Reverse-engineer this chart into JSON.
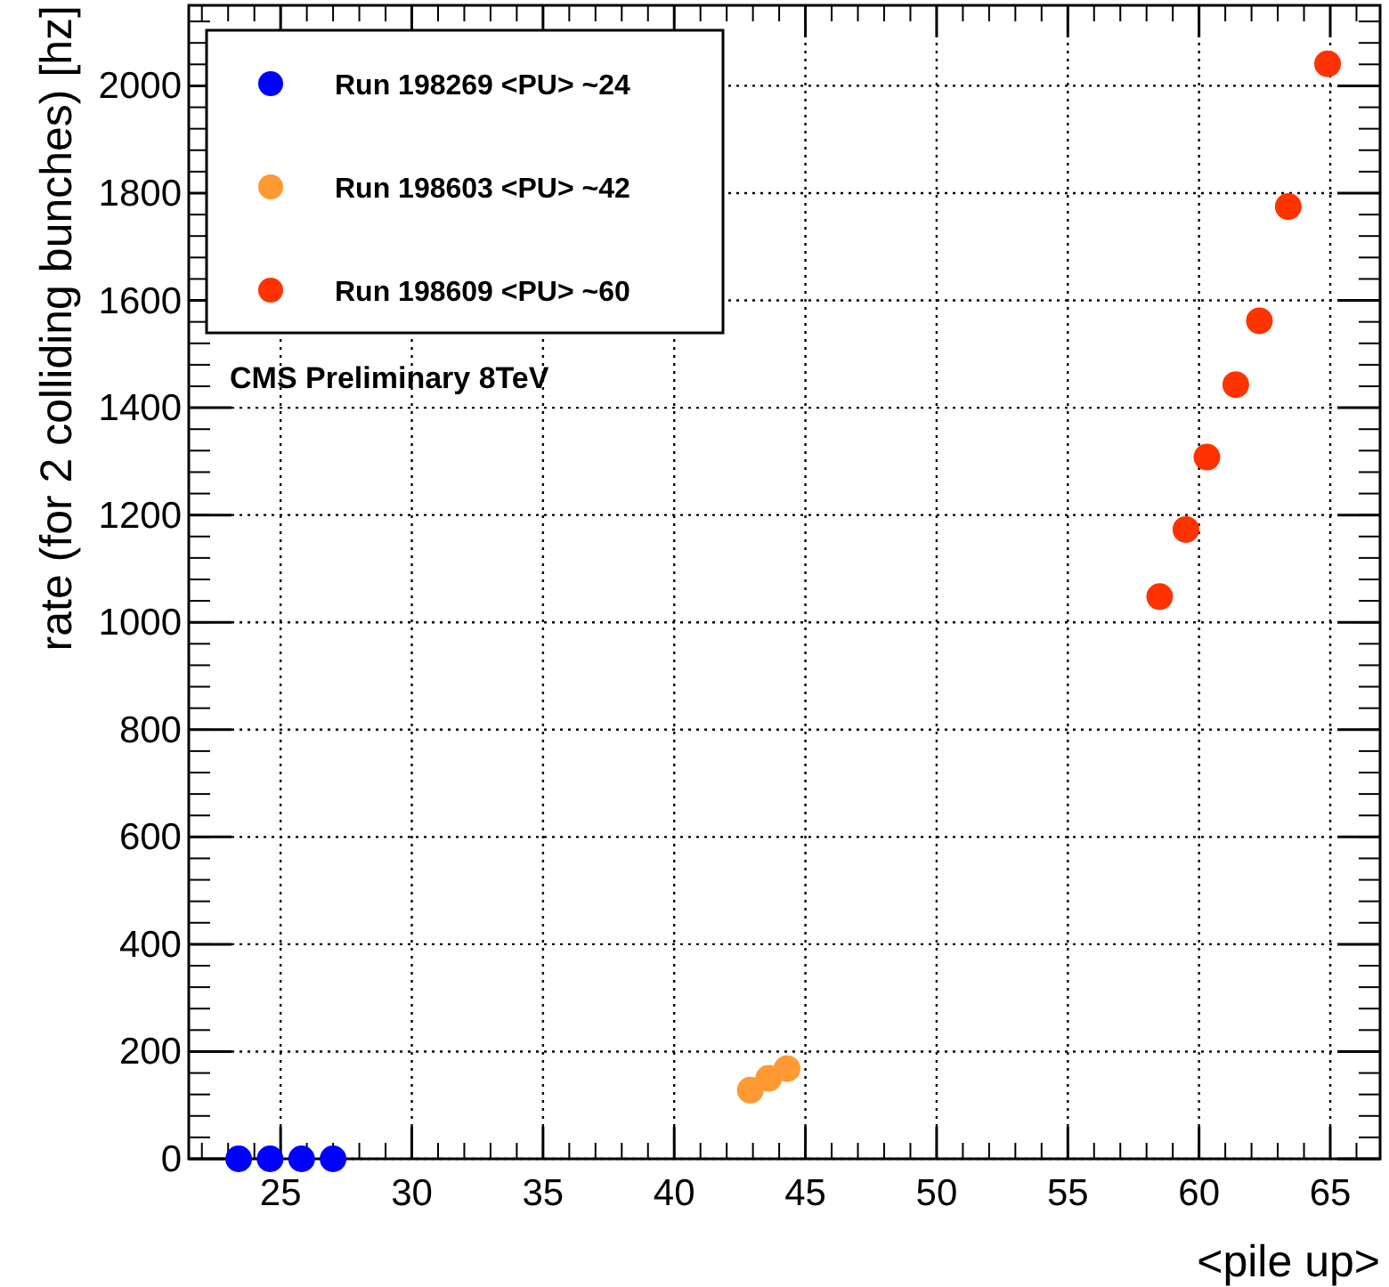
{
  "chart_data": {
    "type": "scatter",
    "xlabel": "<pile up>",
    "ylabel": "rate (for 2 colliding bunches) [hz]",
    "xlim": [
      21.5,
      66.9
    ],
    "ylim": [
      0,
      2150
    ],
    "xticks": [
      25,
      30,
      35,
      40,
      45,
      50,
      55,
      60,
      65
    ],
    "yticks": [
      0,
      200,
      400,
      600,
      800,
      1000,
      1200,
      1400,
      1600,
      1800,
      2000
    ],
    "grid": true,
    "legend": "top left",
    "marker": "circle",
    "annotations": [
      "CMS Preliminary 8TeV"
    ],
    "series": [
      {
        "name": "Run 198269 <PU> ~24",
        "color": "#0000ff",
        "x": [
          23.4,
          24.6,
          25.8,
          27.0
        ],
        "values": [
          0,
          0,
          0,
          0
        ]
      },
      {
        "name": "Run 198603 <PU> ~42",
        "color": "#ff9933",
        "x": [
          42.9,
          43.6,
          44.3
        ],
        "values": [
          128,
          150,
          168
        ]
      },
      {
        "name": "Run 198609 <PU> ~60",
        "color": "#ff3300",
        "x": [
          58.5,
          59.5,
          60.3,
          61.4,
          62.3,
          63.4,
          64.9
        ],
        "values": [
          1048,
          1173,
          1308,
          1443,
          1562,
          1775,
          2041
        ]
      }
    ]
  }
}
